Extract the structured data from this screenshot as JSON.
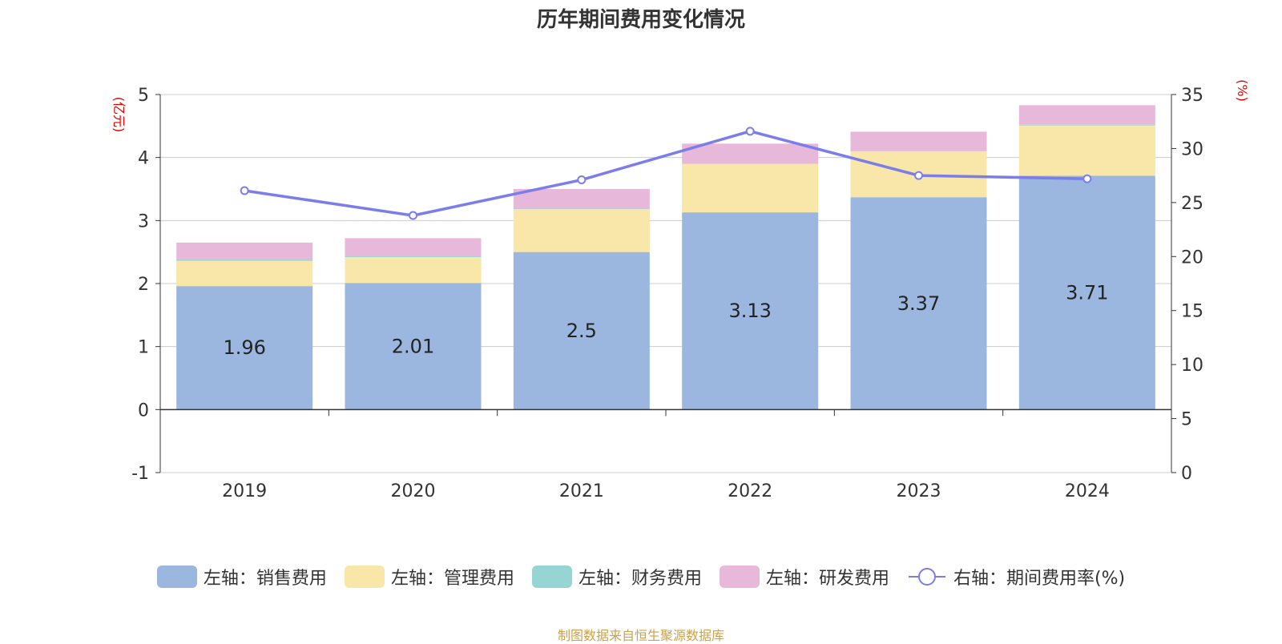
{
  "title": "历年期间费用变化情况",
  "source": "制图数据来自恒生聚源数据库",
  "left_axis_unit": "(亿元)",
  "right_axis_unit": "(%)",
  "legend": [
    {
      "label": "左轴：销售费用",
      "color": "#9bb7e0"
    },
    {
      "label": "左轴：管理费用",
      "color": "#f8e7a8"
    },
    {
      "label": "左轴：财务费用",
      "color": "#97d4d4"
    },
    {
      "label": "左轴：研发费用",
      "color": "#e7b8d9"
    },
    {
      "label": "右轴：期间费用率(%)",
      "color": "#7b7de8"
    }
  ],
  "chart_data": {
    "type": "bar",
    "categories": [
      "2019",
      "2020",
      "2021",
      "2022",
      "2023",
      "2024"
    ],
    "series": [
      {
        "name": "左轴：销售费用",
        "axis": "left",
        "values": [
          1.96,
          2.01,
          2.5,
          3.13,
          3.37,
          3.71
        ],
        "color": "#9bb7e0"
      },
      {
        "name": "左轴：管理费用",
        "axis": "left",
        "values": [
          0.4,
          0.41,
          0.68,
          0.77,
          0.73,
          0.8
        ],
        "color": "#f8e7a8"
      },
      {
        "name": "左轴：财务费用",
        "axis": "left",
        "values": [
          0.02,
          0.02,
          0.01,
          0.0,
          0.0,
          0.01
        ],
        "color": "#97d4d4"
      },
      {
        "name": "左轴：研发费用",
        "axis": "left",
        "values": [
          0.27,
          0.28,
          0.31,
          0.32,
          0.31,
          0.31
        ],
        "color": "#e7b8d9"
      },
      {
        "name": "右轴：期间费用率(%)",
        "axis": "right",
        "type": "line",
        "values": [
          26.1,
          23.8,
          27.1,
          31.6,
          27.5,
          27.2
        ],
        "color": "#7b7de8"
      }
    ],
    "data_labels": [
      "1.96",
      "2.01",
      "2.5",
      "3.13",
      "3.37",
      "3.71"
    ],
    "left_axis": {
      "min": -1,
      "max": 5,
      "ticks": [
        -1,
        0,
        1,
        2,
        3,
        4,
        5
      ]
    },
    "right_axis": {
      "min": 0,
      "max": 35,
      "ticks": [
        0,
        5,
        10,
        15,
        20,
        25,
        30,
        35
      ]
    },
    "grid": true,
    "legend_position": "bottom"
  }
}
